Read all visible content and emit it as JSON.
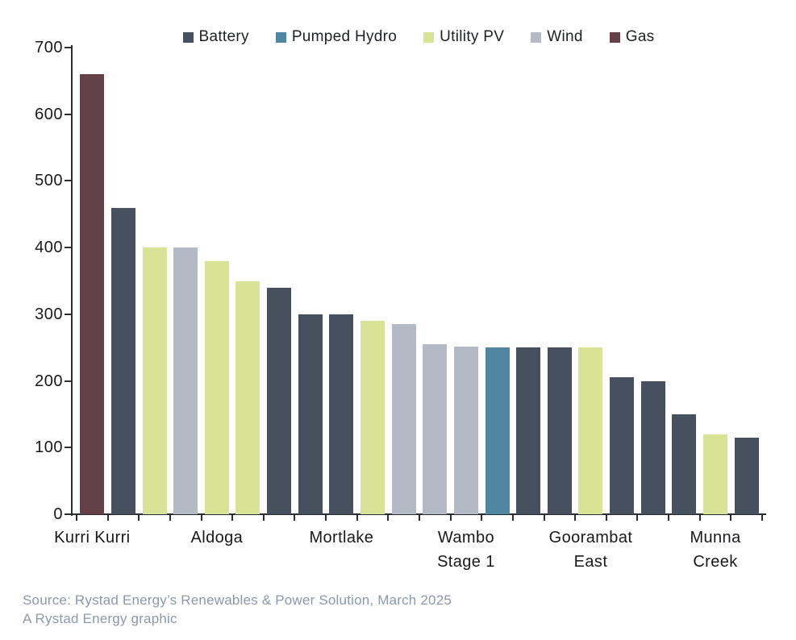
{
  "chart_data": {
    "type": "bar",
    "title": "",
    "xlabel": "",
    "ylabel": "",
    "ylim": [
      0,
      700
    ],
    "yticks": [
      0,
      100,
      200,
      300,
      400,
      500,
      600,
      700
    ],
    "grid": "off",
    "legend_position": "top-center",
    "legend": [
      {
        "name": "Battery",
        "color": "#46505e"
      },
      {
        "name": "Pumped Hydro",
        "color": "#4f87a2"
      },
      {
        "name": "Utility PV",
        "color": "#d9e395"
      },
      {
        "name": "Wind",
        "color": "#b3bac5"
      },
      {
        "name": "Gas",
        "color": "#644049"
      }
    ],
    "bars": [
      {
        "series": "Gas",
        "value": 660
      },
      {
        "series": "Battery",
        "value": 460
      },
      {
        "series": "Utility PV",
        "value": 400
      },
      {
        "series": "Wind",
        "value": 400
      },
      {
        "series": "Utility PV",
        "value": 380
      },
      {
        "series": "Utility PV",
        "value": 350
      },
      {
        "series": "Battery",
        "value": 340
      },
      {
        "series": "Battery",
        "value": 300
      },
      {
        "series": "Battery",
        "value": 300
      },
      {
        "series": "Utility PV",
        "value": 290
      },
      {
        "series": "Wind",
        "value": 285
      },
      {
        "series": "Wind",
        "value": 255
      },
      {
        "series": "Wind",
        "value": 252
      },
      {
        "series": "Pumped Hydro",
        "value": 250
      },
      {
        "series": "Battery",
        "value": 250
      },
      {
        "series": "Battery",
        "value": 250
      },
      {
        "series": "Utility PV",
        "value": 250
      },
      {
        "series": "Battery",
        "value": 205
      },
      {
        "series": "Battery",
        "value": 200
      },
      {
        "series": "Battery",
        "value": 150
      },
      {
        "series": "Utility PV",
        "value": 120
      },
      {
        "series": "Battery",
        "value": 115
      }
    ],
    "x_tick_labels": [
      {
        "bar_index": 0,
        "label": "Kurri Kurri"
      },
      {
        "bar_index": 4,
        "label": "Aldoga"
      },
      {
        "bar_index": 8,
        "label": "Mortlake"
      },
      {
        "bar_index": 12,
        "label": "Wambo\nStage 1"
      },
      {
        "bar_index": 16,
        "label": "Goorambat\nEast"
      },
      {
        "bar_index": 20,
        "label": "Munna Creek"
      }
    ]
  },
  "footer": {
    "source_line1": "Source: Rystad Energy’s Renewables & Power Solution, March 2025",
    "source_line2": "A Rystad Energy graphic"
  }
}
